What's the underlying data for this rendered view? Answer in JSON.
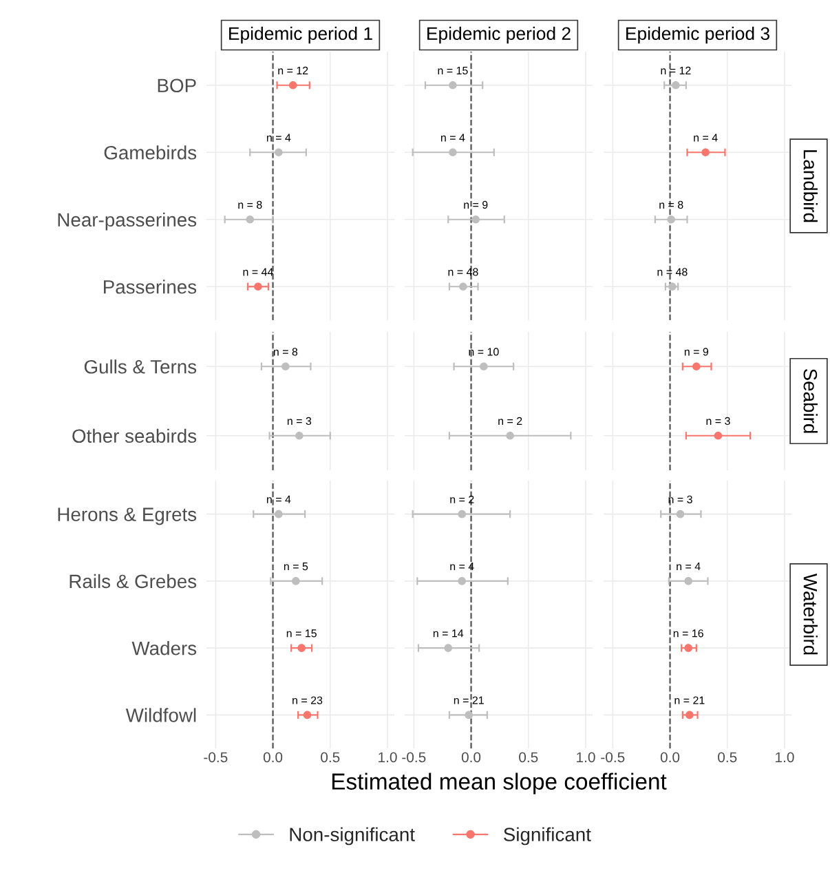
{
  "chart_data": [
    {
      "type": "scatter",
      "orientation": "horizontal",
      "title": "Epidemic period 1",
      "categories": [
        "BOP",
        "Gamebirds",
        "Near-passerines",
        "Passerines"
      ],
      "series": [
        {
          "name": "Non-significant",
          "color": "#bebebe",
          "values": [
            null,
            0.05,
            -0.2,
            null
          ],
          "errors": [
            null,
            [
              -0.2,
              0.29
            ],
            [
              -0.42,
              0.0
            ],
            null
          ]
        },
        {
          "name": "Significant",
          "color": "#f8766d",
          "values": [
            0.175,
            null,
            null,
            -0.13
          ],
          "errors": [
            [
              0.036,
              0.32
            ],
            null,
            null,
            [
              -0.22,
              -0.04
            ]
          ]
        }
      ],
      "xlim": [
        -0.58,
        1.06
      ],
      "xticks": [
        {
          "value": -0.5,
          "label": "-0.5"
        },
        {
          "value": 0,
          "label": "0.0"
        },
        {
          "value": 0.5,
          "label": "0.5"
        },
        {
          "value": 1,
          "label": "1.0"
        }
      ],
      "grid": true,
      "marker": "circle",
      "tick_labels": "y",
      "legend": "bottom",
      "ref_lines": [
        {
          "axis": "x",
          "value": 0,
          "line_style": "dashed",
          "color": "#555555"
        }
      ],
      "annotations": [
        {
          "text": "n = 12",
          "x": 0.175,
          "y": "BOP"
        },
        {
          "text": "n = 4",
          "x": 0.05,
          "y": "Gamebirds"
        },
        {
          "text": "n = 8",
          "x": -0.2,
          "y": "Near-passerines"
        },
        {
          "text": "n = 44",
          "x": -0.13,
          "y": "Passerines"
        }
      ]
    },
    {
      "type": "scatter",
      "orientation": "horizontal",
      "title": "Epidemic period 2",
      "categories": [
        "BOP",
        "Gamebirds",
        "Near-passerines",
        "Passerines"
      ],
      "series": [
        {
          "name": "Non-significant",
          "color": "#bebebe",
          "values": [
            -0.16,
            -0.16,
            0.04,
            -0.07
          ],
          "errors": [
            [
              -0.4,
              0.1
            ],
            [
              -0.51,
              0.2
            ],
            [
              -0.2,
              0.29
            ],
            [
              -0.19,
              0.06
            ]
          ]
        },
        {
          "name": "Significant",
          "color": "#f8766d",
          "values": [
            null,
            null,
            null,
            null
          ],
          "errors": [
            null,
            null,
            null,
            null
          ]
        }
      ],
      "xlim": [
        -0.58,
        1.06
      ],
      "xticks": [
        {
          "value": -0.5,
          "label": "-0.5"
        },
        {
          "value": 0,
          "label": "0.0"
        },
        {
          "value": 0.5,
          "label": "0.5"
        },
        {
          "value": 1,
          "label": "1.0"
        }
      ],
      "grid": true,
      "marker": "circle",
      "tick_labels": false,
      "ref_lines": [
        {
          "axis": "x",
          "value": 0,
          "line_style": "dashed",
          "color": "#555555"
        }
      ],
      "annotations": [
        {
          "text": "n = 15",
          "x": -0.16,
          "y": "BOP"
        },
        {
          "text": "n = 4",
          "x": -0.16,
          "y": "Gamebirds"
        },
        {
          "text": "n = 9",
          "x": 0.04,
          "y": "Near-passerines"
        },
        {
          "text": "n = 48",
          "x": -0.07,
          "y": "Passerines"
        }
      ]
    },
    {
      "type": "scatter",
      "orientation": "horizontal",
      "title": "Epidemic period 3",
      "y2label": "Landbird",
      "categories": [
        "BOP",
        "Gamebirds",
        "Near-passerines",
        "Passerines"
      ],
      "series": [
        {
          "name": "Non-significant",
          "color": "#bebebe",
          "values": [
            0.05,
            null,
            0.01,
            0.02
          ],
          "errors": [
            [
              -0.05,
              0.14
            ],
            null,
            [
              -0.13,
              0.15
            ],
            [
              -0.04,
              0.07
            ]
          ]
        },
        {
          "name": "Significant",
          "color": "#f8766d",
          "values": [
            null,
            0.31,
            null,
            null
          ],
          "errors": [
            null,
            [
              0.15,
              0.48
            ],
            null,
            null
          ]
        }
      ],
      "xlim": [
        -0.58,
        1.06
      ],
      "xticks": [
        {
          "value": -0.5,
          "label": "-0.5"
        },
        {
          "value": 0,
          "label": "0.0"
        },
        {
          "value": 0.5,
          "label": "0.5"
        },
        {
          "value": 1,
          "label": "1.0"
        }
      ],
      "grid": true,
      "marker": "circle",
      "tick_labels": false,
      "ref_lines": [
        {
          "axis": "x",
          "value": 0,
          "line_style": "dashed",
          "color": "#555555"
        }
      ],
      "annotations": [
        {
          "text": "n = 12",
          "x": 0.05,
          "y": "BOP"
        },
        {
          "text": "n = 4",
          "x": 0.31,
          "y": "Gamebirds"
        },
        {
          "text": "n = 8",
          "x": 0.01,
          "y": "Near-passerines"
        },
        {
          "text": "n = 48",
          "x": 0.02,
          "y": "Passerines"
        }
      ]
    },
    {
      "type": "scatter",
      "orientation": "horizontal",
      "categories": [
        "Gulls & Terns",
        "Other seabirds"
      ],
      "series": [
        {
          "name": "Non-significant",
          "color": "#bebebe",
          "values": [
            0.11,
            0.23
          ],
          "errors": [
            [
              -0.1,
              0.33
            ],
            [
              -0.03,
              0.5
            ]
          ]
        },
        {
          "name": "Significant",
          "color": "#f8766d",
          "values": [
            null,
            null
          ],
          "errors": [
            null,
            null
          ]
        }
      ],
      "xlim": [
        -0.58,
        1.06
      ],
      "xticks": [
        {
          "value": -0.5,
          "label": "-0.5"
        },
        {
          "value": 0,
          "label": "0.0"
        },
        {
          "value": 0.5,
          "label": "0.5"
        },
        {
          "value": 1,
          "label": "1.0"
        }
      ],
      "grid": true,
      "marker": "circle",
      "tick_labels": "y",
      "ref_lines": [
        {
          "axis": "x",
          "value": 0,
          "line_style": "dashed",
          "color": "#555555"
        }
      ],
      "annotations": [
        {
          "text": "n = 8",
          "x": 0.11,
          "y": "Gulls & Terns"
        },
        {
          "text": "n = 3",
          "x": 0.23,
          "y": "Other seabirds"
        }
      ]
    },
    {
      "type": "scatter",
      "orientation": "horizontal",
      "categories": [
        "Gulls & Terns",
        "Other seabirds"
      ],
      "series": [
        {
          "name": "Non-significant",
          "color": "#bebebe",
          "values": [
            0.11,
            0.34
          ],
          "errors": [
            [
              -0.15,
              0.37
            ],
            [
              -0.19,
              0.87
            ]
          ]
        },
        {
          "name": "Significant",
          "color": "#f8766d",
          "values": [
            null,
            null
          ],
          "errors": [
            null,
            null
          ]
        }
      ],
      "xlim": [
        -0.58,
        1.06
      ],
      "xticks": [
        {
          "value": -0.5,
          "label": "-0.5"
        },
        {
          "value": 0,
          "label": "0.0"
        },
        {
          "value": 0.5,
          "label": "0.5"
        },
        {
          "value": 1,
          "label": "1.0"
        }
      ],
      "grid": true,
      "marker": "circle",
      "tick_labels": false,
      "ref_lines": [
        {
          "axis": "x",
          "value": 0,
          "line_style": "dashed",
          "color": "#555555"
        }
      ],
      "annotations": [
        {
          "text": "n = 10",
          "x": 0.11,
          "y": "Gulls & Terns"
        },
        {
          "text": "n = 2",
          "x": 0.34,
          "y": "Other seabirds"
        }
      ]
    },
    {
      "type": "scatter",
      "orientation": "horizontal",
      "y2label": "Seabird",
      "categories": [
        "Gulls & Terns",
        "Other seabirds"
      ],
      "series": [
        {
          "name": "Non-significant",
          "color": "#bebebe",
          "values": [
            null,
            null
          ],
          "errors": [
            null,
            null
          ]
        },
        {
          "name": "Significant",
          "color": "#f8766d",
          "values": [
            0.23,
            0.42
          ],
          "errors": [
            [
              0.11,
              0.36
            ],
            [
              0.14,
              0.7
            ]
          ]
        }
      ],
      "xlim": [
        -0.58,
        1.06
      ],
      "xticks": [
        {
          "value": -0.5,
          "label": "-0.5"
        },
        {
          "value": 0,
          "label": "0.0"
        },
        {
          "value": 0.5,
          "label": "0.5"
        },
        {
          "value": 1,
          "label": "1.0"
        }
      ],
      "grid": true,
      "marker": "circle",
      "tick_labels": false,
      "ref_lines": [
        {
          "axis": "x",
          "value": 0,
          "line_style": "dashed",
          "color": "#555555"
        }
      ],
      "annotations": [
        {
          "text": "n = 9",
          "x": 0.23,
          "y": "Gulls & Terns"
        },
        {
          "text": "n = 3",
          "x": 0.42,
          "y": "Other seabirds"
        }
      ]
    },
    {
      "type": "scatter",
      "orientation": "horizontal",
      "categories": [
        "Herons & Egrets",
        "Rails & Grebes",
        "Waders",
        "Wildfowl"
      ],
      "series": [
        {
          "name": "Non-significant",
          "color": "#bebebe",
          "values": [
            0.05,
            0.2,
            null,
            null
          ],
          "errors": [
            [
              -0.17,
              0.28
            ],
            [
              -0.02,
              0.43
            ],
            null,
            null
          ]
        },
        {
          "name": "Significant",
          "color": "#f8766d",
          "values": [
            null,
            null,
            0.25,
            0.3
          ],
          "errors": [
            null,
            null,
            [
              0.16,
              0.34
            ],
            [
              0.22,
              0.39
            ]
          ]
        }
      ],
      "xlim": [
        -0.58,
        1.06
      ],
      "xticks": [
        {
          "value": -0.5,
          "label": "-0.5"
        },
        {
          "value": 0,
          "label": "0.0"
        },
        {
          "value": 0.5,
          "label": "0.5"
        },
        {
          "value": 1,
          "label": "1.0"
        }
      ],
      "grid": true,
      "marker": "circle",
      "ref_lines": [
        {
          "axis": "x",
          "value": 0,
          "line_style": "dashed",
          "color": "#555555"
        }
      ],
      "annotations": [
        {
          "text": "n = 4",
          "x": 0.05,
          "y": "Herons & Egrets"
        },
        {
          "text": "n = 5",
          "x": 0.2,
          "y": "Rails & Grebes"
        },
        {
          "text": "n = 15",
          "x": 0.25,
          "y": "Waders"
        },
        {
          "text": "n = 23",
          "x": 0.3,
          "y": "Wildfowl"
        }
      ]
    },
    {
      "type": "scatter",
      "orientation": "horizontal",
      "xlabel": "Estimated mean slope coefficient",
      "categories": [
        "Herons & Egrets",
        "Rails & Grebes",
        "Waders",
        "Wildfowl"
      ],
      "series": [
        {
          "name": "Non-significant",
          "color": "#bebebe",
          "values": [
            -0.08,
            -0.08,
            -0.2,
            -0.02
          ],
          "errors": [
            [
              -0.51,
              0.34
            ],
            [
              -0.47,
              0.32
            ],
            [
              -0.46,
              0.07
            ],
            [
              -0.19,
              0.14
            ]
          ]
        },
        {
          "name": "Significant",
          "color": "#f8766d",
          "values": [
            null,
            null,
            null,
            null
          ],
          "errors": [
            null,
            null,
            null,
            null
          ]
        }
      ],
      "xlim": [
        -0.58,
        1.06
      ],
      "xticks": [
        {
          "value": -0.5,
          "label": "-0.5"
        },
        {
          "value": 0,
          "label": "0.0"
        },
        {
          "value": 0.5,
          "label": "0.5"
        },
        {
          "value": 1,
          "label": "1.0"
        }
      ],
      "grid": true,
      "marker": "circle",
      "tick_labels": "x",
      "ref_lines": [
        {
          "axis": "x",
          "value": 0,
          "line_style": "dashed",
          "color": "#555555"
        }
      ],
      "annotations": [
        {
          "text": "n = 2",
          "x": -0.08,
          "y": "Herons & Egrets"
        },
        {
          "text": "n = 4",
          "x": -0.08,
          "y": "Rails & Grebes"
        },
        {
          "text": "n = 14",
          "x": -0.2,
          "y": "Waders"
        },
        {
          "text": "n = 21",
          "x": -0.02,
          "y": "Wildfowl"
        }
      ]
    },
    {
      "type": "scatter",
      "orientation": "horizontal",
      "y2label": "Waterbird",
      "categories": [
        "Herons & Egrets",
        "Rails & Grebes",
        "Waders",
        "Wildfowl"
      ],
      "series": [
        {
          "name": "Non-significant",
          "color": "#bebebe",
          "values": [
            0.09,
            0.16,
            null,
            null
          ],
          "errors": [
            [
              -0.08,
              0.27
            ],
            [
              -0.01,
              0.33
            ],
            null,
            null
          ]
        },
        {
          "name": "Significant",
          "color": "#f8766d",
          "values": [
            null,
            null,
            0.16,
            0.17
          ],
          "errors": [
            null,
            null,
            [
              0.1,
              0.23
            ],
            [
              0.11,
              0.24
            ]
          ]
        }
      ],
      "xlim": [
        -0.58,
        1.06
      ],
      "xticks": [
        {
          "value": -0.5,
          "label": "-0.5"
        },
        {
          "value": 0,
          "label": "0.0"
        },
        {
          "value": 0.5,
          "label": "0.5"
        },
        {
          "value": 1,
          "label": "1.0"
        }
      ],
      "grid": true,
      "marker": "circle",
      "tick_labels": "x",
      "ref_lines": [
        {
          "axis": "x",
          "value": 0,
          "line_style": "dashed",
          "color": "#555555"
        }
      ],
      "annotations": [
        {
          "text": "n = 3",
          "x": 0.09,
          "y": "Herons & Egrets"
        },
        {
          "text": "n = 4",
          "x": 0.16,
          "y": "Rails & Grebes"
        },
        {
          "text": "n = 16",
          "x": 0.16,
          "y": "Waders"
        },
        {
          "text": "n = 21",
          "x": 0.17,
          "y": "Wildfowl"
        }
      ]
    }
  ]
}
